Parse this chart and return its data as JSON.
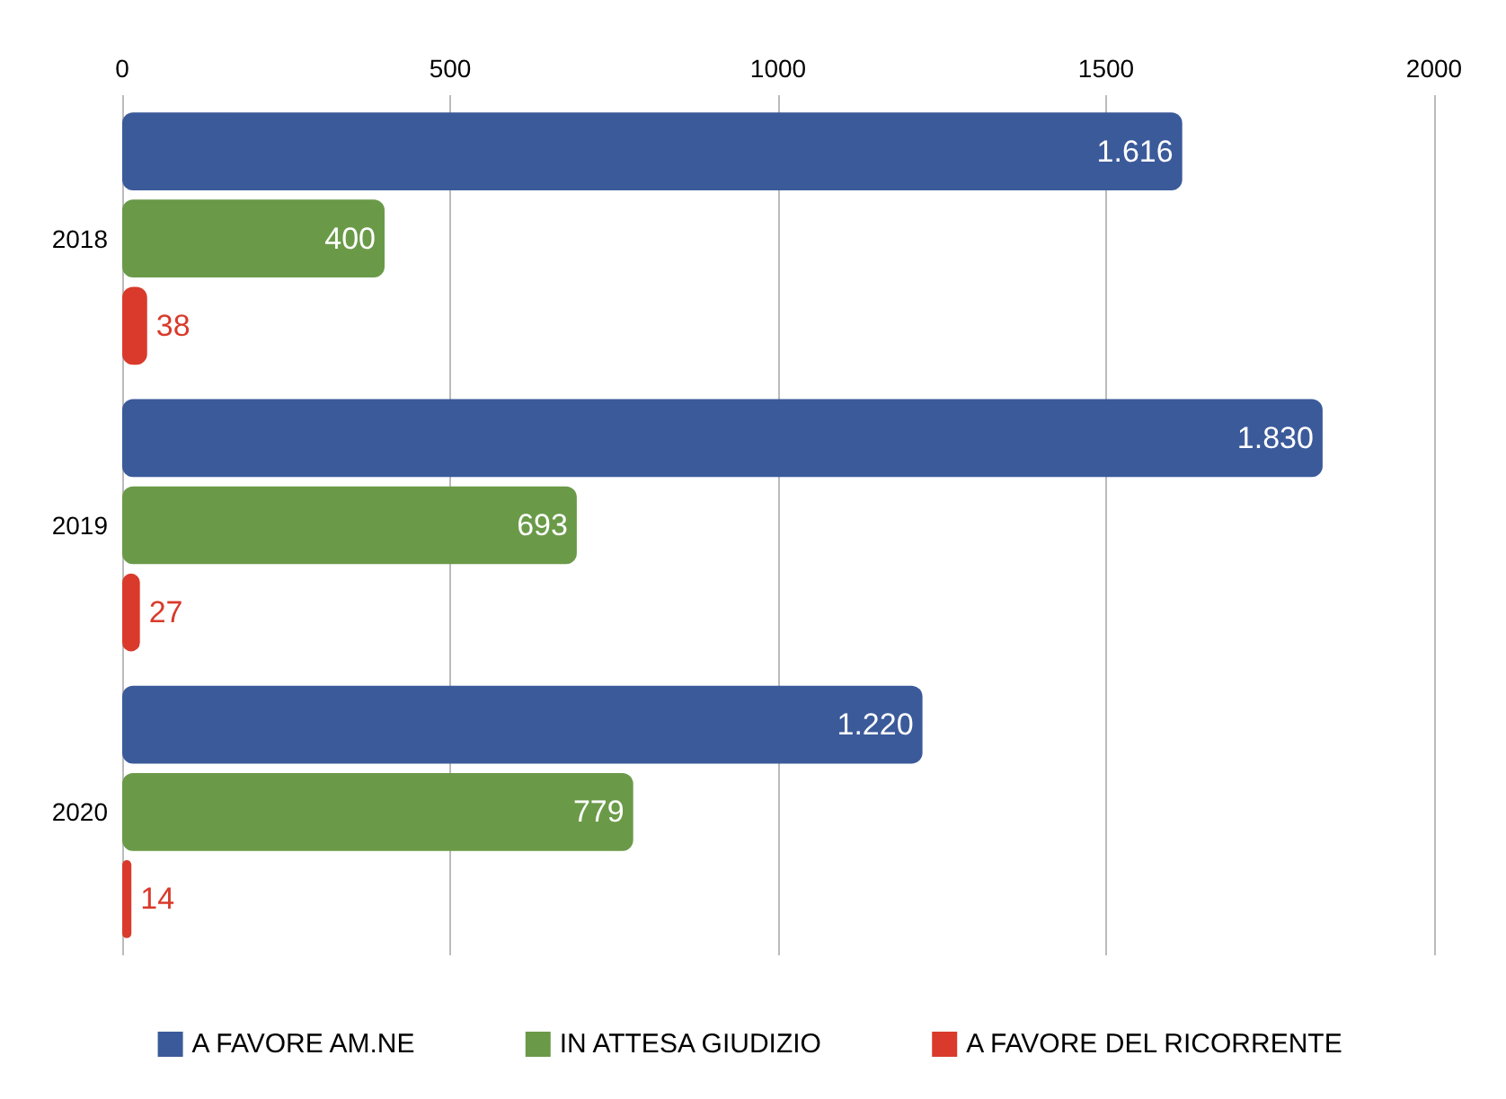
{
  "chart_data": {
    "type": "bar",
    "orientation": "horizontal",
    "categories": [
      "2018",
      "2019",
      "2020"
    ],
    "series": [
      {
        "name": "A FAVORE AM.NE",
        "color": "#3b5a9a",
        "values": [
          1616,
          1830,
          1220
        ],
        "value_labels": [
          "1.616",
          "1.830",
          "1.220"
        ]
      },
      {
        "name": "IN ATTESA GIUDIZIO",
        "color": "#6a9a48",
        "values": [
          400,
          693,
          779
        ],
        "value_labels": [
          "400",
          "693",
          "779"
        ]
      },
      {
        "name": "A FAVORE DEL RICORRENTE",
        "color": "#d93a2b",
        "values": [
          38,
          27,
          14
        ],
        "value_labels": [
          "38",
          "27",
          "14"
        ]
      }
    ],
    "xlim": [
      0,
      2000
    ],
    "xticks": [
      0,
      500,
      1000,
      1500,
      2000
    ],
    "grid": "x",
    "legend": "bottom"
  }
}
